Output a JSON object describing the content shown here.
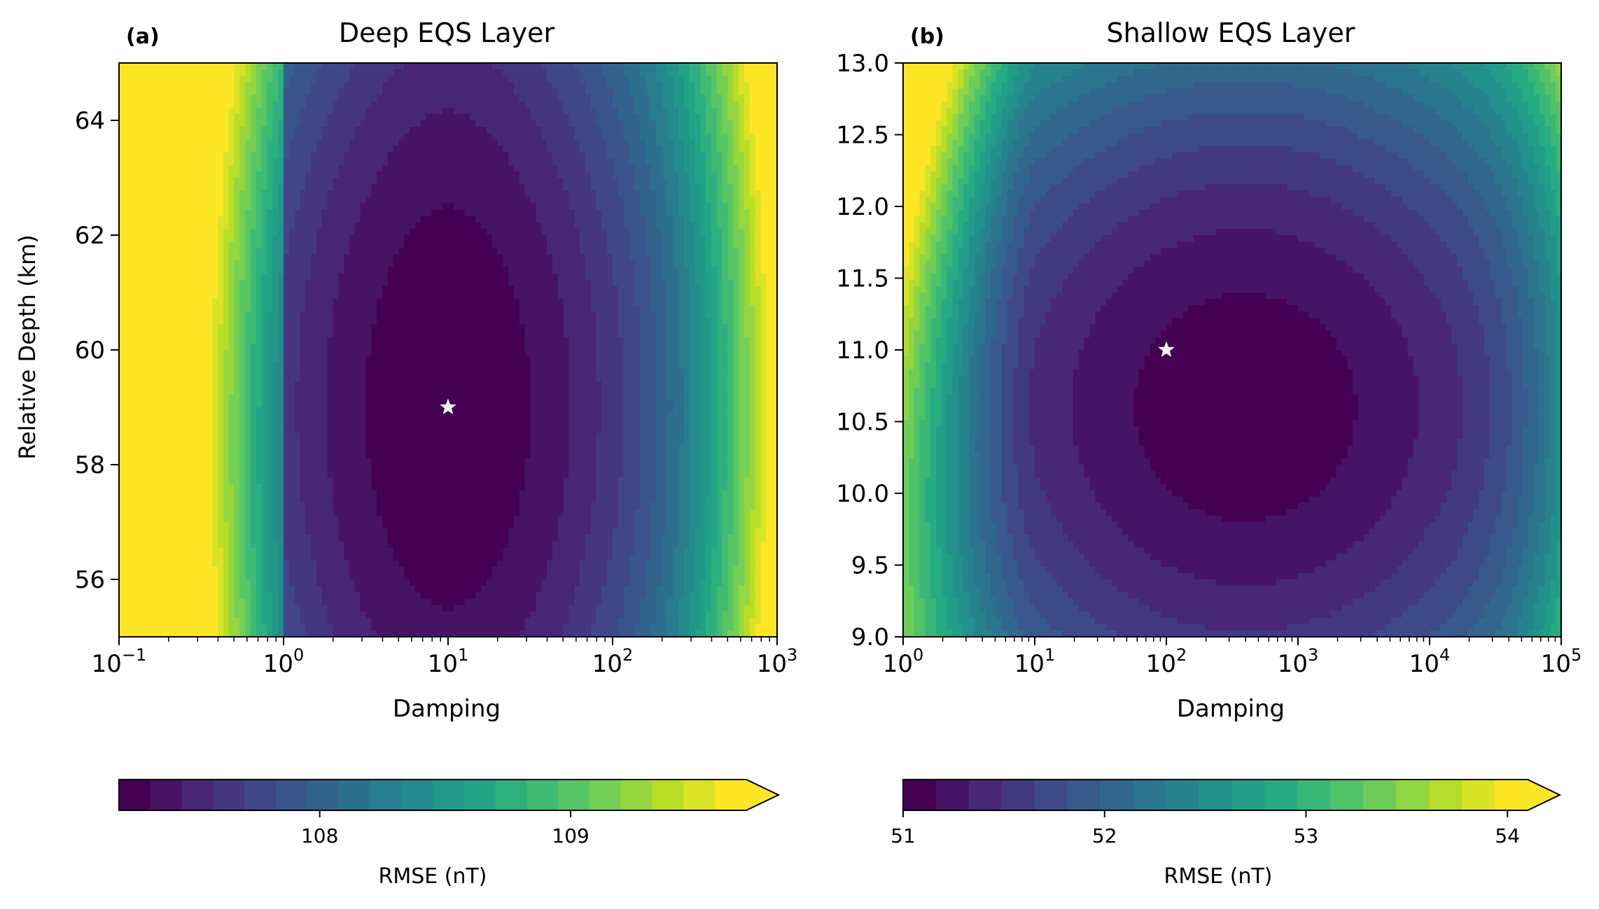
{
  "figure": {
    "panel_a_label": "(a)",
    "panel_b_label": "(b)"
  },
  "chart_data": [
    {
      "type": "heatmap",
      "panel": "(a)",
      "title": "Deep EQS Layer",
      "xlabel": "Damping",
      "ylabel": "Relative Depth (km)",
      "x_scale": "log",
      "xlim": [
        0.1,
        1000
      ],
      "ylim": [
        55,
        65
      ],
      "x_ticks": [
        {
          "value": 0.1,
          "base": "10",
          "exp": "−1"
        },
        {
          "value": 1,
          "base": "10",
          "exp": "0"
        },
        {
          "value": 10,
          "base": "10",
          "exp": "1"
        },
        {
          "value": 100,
          "base": "10",
          "exp": "2"
        },
        {
          "value": 1000,
          "base": "10",
          "exp": "3"
        }
      ],
      "y_ticks": [
        {
          "value": 56,
          "label": "56"
        },
        {
          "value": 58,
          "label": "58"
        },
        {
          "value": 60,
          "label": "60"
        },
        {
          "value": 62,
          "label": "62"
        },
        {
          "value": 64,
          "label": "64"
        }
      ],
      "optimum": {
        "x": 10,
        "y": 59
      },
      "colorbar": {
        "label": "RMSE (nT)",
        "extend": "max",
        "vmin": 107.2,
        "vmax": 109.7,
        "levels": 20,
        "ticks": [
          {
            "value": 108,
            "label": "108"
          },
          {
            "value": 109,
            "label": "109"
          }
        ]
      }
    },
    {
      "type": "heatmap",
      "panel": "(b)",
      "title": "Shallow EQS Layer",
      "xlabel": "Damping",
      "ylabel": "",
      "x_scale": "log",
      "xlim": [
        1,
        100000
      ],
      "ylim": [
        9.0,
        13.0
      ],
      "x_ticks": [
        {
          "value": 1,
          "base": "10",
          "exp": "0"
        },
        {
          "value": 10,
          "base": "10",
          "exp": "1"
        },
        {
          "value": 100,
          "base": "10",
          "exp": "2"
        },
        {
          "value": 1000,
          "base": "10",
          "exp": "3"
        },
        {
          "value": 10000,
          "base": "10",
          "exp": "4"
        },
        {
          "value": 100000,
          "base": "10",
          "exp": "5"
        }
      ],
      "y_ticks": [
        {
          "value": 9.0,
          "label": "9.0"
        },
        {
          "value": 9.5,
          "label": "9.5"
        },
        {
          "value": 10.0,
          "label": "10.0"
        },
        {
          "value": 10.5,
          "label": "10.5"
        },
        {
          "value": 11.0,
          "label": "11.0"
        },
        {
          "value": 11.5,
          "label": "11.5"
        },
        {
          "value": 12.0,
          "label": "12.0"
        },
        {
          "value": 12.5,
          "label": "12.5"
        },
        {
          "value": 13.0,
          "label": "13.0"
        }
      ],
      "optimum": {
        "x": 100,
        "y": 11.0
      },
      "colorbar": {
        "label": "RMSE (nT)",
        "extend": "max",
        "vmin": 51.0,
        "vmax": 54.1,
        "levels": 19,
        "ticks": [
          {
            "value": 51,
            "label": "51"
          },
          {
            "value": 52,
            "label": "52"
          },
          {
            "value": 53,
            "label": "53"
          },
          {
            "value": 54,
            "label": "54"
          }
        ]
      }
    }
  ]
}
